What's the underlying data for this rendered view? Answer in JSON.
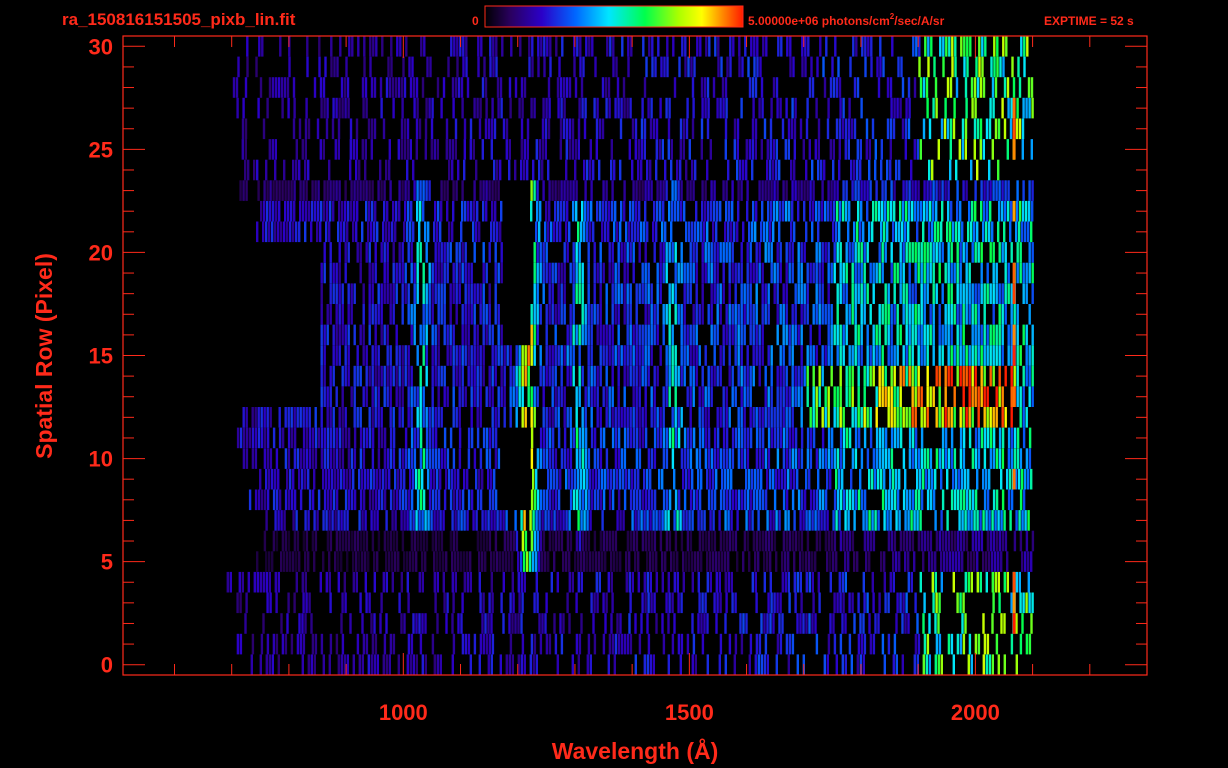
{
  "header": {
    "filename": "ra_150816151505_pixb_lin.fit",
    "colorbar_min": "0",
    "colorbar_max_prefix": "5.00000e+06 photons/cm",
    "colorbar_max_sup": "2",
    "colorbar_max_suffix": "/sec/A/sr",
    "exptime": "EXPTIME = 52 s"
  },
  "colors": {
    "axis": "#ff2a1a",
    "background": "#000000",
    "colormap": [
      "#000000",
      "#2a0060",
      "#2b00c8",
      "#0066ff",
      "#00e6ff",
      "#00ff4c",
      "#aaff00",
      "#ffff00",
      "#ff8a00",
      "#ff1a00"
    ]
  },
  "chart_data": {
    "type": "heatmap",
    "title": "",
    "xlabel": "Wavelength (Å)",
    "ylabel": "Spatial Row (Pixel)",
    "xlim": [
      510,
      2300
    ],
    "ylim": [
      -0.5,
      30.5
    ],
    "x_ticks": [
      1000,
      1500,
      2000
    ],
    "y_ticks": [
      0,
      5,
      10,
      15,
      20,
      25,
      30
    ],
    "colorbar": {
      "min": 0,
      "max": 5000000,
      "units": "photons/cm^2/sec/A/sr"
    },
    "rows": 31,
    "data_extent_x": [
      680,
      2100
    ],
    "emission_features": [
      {
        "name": "",
        "x": 1216,
        "rows": [
          5,
          23
        ],
        "level": 0.7
      },
      {
        "name": "",
        "x": 1030,
        "rows": [
          7,
          23
        ],
        "level": 0.4
      },
      {
        "name": "",
        "x": 1304,
        "rows": [
          6,
          22
        ],
        "level": 0.38
      },
      {
        "name": "",
        "x": 1470,
        "rows": [
          7,
          23
        ],
        "level": 0.35
      }
    ],
    "bright_band": {
      "rows": [
        12,
        14
      ],
      "x_range": [
        1700,
        2070
      ],
      "peak_level": 0.97
    },
    "gaps": [
      {
        "x_range": [
          1170,
          1220
        ],
        "rows": [
          16,
          23
        ]
      },
      {
        "x_range": [
          1165,
          1220
        ],
        "rows": [
          8,
          11
        ]
      },
      {
        "x_range": [
          750,
          850
        ],
        "rows": [
          13,
          20
        ]
      }
    ]
  }
}
